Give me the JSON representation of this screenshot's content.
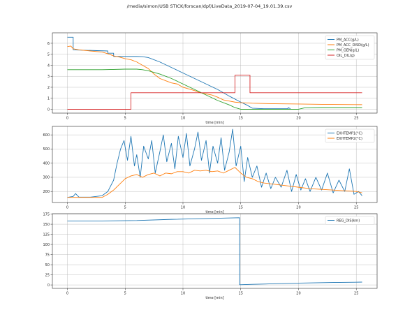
{
  "figure_title": "/media/simon/USB STICK/forscan/dpf/LiveData_2019-07-04_19.01.39.csv",
  "chart_data": [
    {
      "type": "line",
      "title": "",
      "xlabel": "time [min]",
      "ylabel": "",
      "xlim": [
        -1.3,
        26.8
      ],
      "ylim": [
        -0.35,
        6.95
      ],
      "xticks": [
        0,
        5,
        10,
        15,
        20,
        25
      ],
      "yticks": [
        0,
        1,
        2,
        3,
        4,
        5,
        6
      ],
      "grid": true,
      "legend_position": "top-right",
      "series": [
        {
          "name": "PM_ACC(g/L)",
          "color": "#1f77b4",
          "points": [
            [
              0,
              6.55
            ],
            [
              0.5,
              6.55
            ],
            [
              0.5,
              5.4
            ],
            [
              3.5,
              5.3
            ],
            [
              3.5,
              5.1
            ],
            [
              4,
              5.1
            ],
            [
              4,
              4.8
            ],
            [
              6,
              4.8
            ],
            [
              6.5,
              4.78
            ],
            [
              7,
              4.7
            ],
            [
              8,
              4.3
            ],
            [
              9,
              3.8
            ],
            [
              10,
              3.3
            ],
            [
              11,
              2.8
            ],
            [
              12,
              2.3
            ],
            [
              13,
              1.8
            ],
            [
              14,
              1.2
            ],
            [
              15,
              0.65
            ],
            [
              15.5,
              0.4
            ],
            [
              16,
              0.1
            ],
            [
              17,
              0.05
            ],
            [
              19.1,
              0.05
            ],
            [
              19.1,
              0.15
            ],
            [
              19.3,
              0.05
            ]
          ]
        },
        {
          "name": "PM_ACC_DISD(g/L)",
          "color": "#ff7f0e",
          "points": [
            [
              0,
              5.7
            ],
            [
              0.3,
              5.75
            ],
            [
              0.5,
              5.5
            ],
            [
              1,
              5.4
            ],
            [
              2,
              5.3
            ],
            [
              3,
              5.2
            ],
            [
              3.5,
              5.05
            ],
            [
              4,
              4.85
            ],
            [
              4.5,
              4.75
            ],
            [
              5,
              4.6
            ],
            [
              5.5,
              4.5
            ],
            [
              6,
              4.3
            ],
            [
              6.5,
              4.0
            ],
            [
              7,
              3.7
            ],
            [
              7.5,
              3.2
            ],
            [
              8,
              2.8
            ],
            [
              8.5,
              2.6
            ],
            [
              9,
              2.4
            ],
            [
              9.5,
              2.3
            ],
            [
              10,
              2.0
            ],
            [
              10.5,
              1.85
            ],
            [
              11,
              1.7
            ],
            [
              11.5,
              1.5
            ],
            [
              12,
              1.4
            ],
            [
              12.5,
              1.3
            ],
            [
              13,
              1.1
            ],
            [
              13.5,
              0.85
            ],
            [
              14,
              0.75
            ],
            [
              14.5,
              0.65
            ],
            [
              15,
              0.6
            ],
            [
              16,
              0.55
            ],
            [
              18,
              0.5
            ],
            [
              20,
              0.48
            ],
            [
              22,
              0.45
            ],
            [
              24,
              0.43
            ],
            [
              25.5,
              0.42
            ]
          ]
        },
        {
          "name": "PM_GEN(g/L)",
          "color": "#2ca02c",
          "points": [
            [
              0,
              3.6
            ],
            [
              2,
              3.6
            ],
            [
              3,
              3.6
            ],
            [
              4,
              3.62
            ],
            [
              5,
              3.65
            ],
            [
              6,
              3.65
            ],
            [
              6.5,
              3.6
            ],
            [
              7,
              3.5
            ],
            [
              8,
              3.2
            ],
            [
              9,
              2.8
            ],
            [
              10,
              2.3
            ],
            [
              11,
              1.8
            ],
            [
              12,
              1.3
            ],
            [
              13,
              0.8
            ],
            [
              14,
              0.4
            ],
            [
              14.5,
              0.15
            ],
            [
              15,
              0.0
            ],
            [
              17,
              0.0
            ],
            [
              20,
              0.0
            ],
            [
              20.5,
              0.12
            ],
            [
              22,
              0.15
            ],
            [
              25.5,
              0.15
            ]
          ]
        },
        {
          "name": "OIL_DIL(g)",
          "color": "#d62728",
          "points": [
            [
              0,
              0.0
            ],
            [
              5.5,
              0.0
            ],
            [
              5.5,
              1.5
            ],
            [
              14.5,
              1.5
            ],
            [
              14.5,
              3.1
            ],
            [
              15.8,
              3.1
            ],
            [
              15.8,
              1.5
            ],
            [
              25.5,
              1.5
            ]
          ]
        }
      ]
    },
    {
      "type": "line",
      "title": "",
      "xlabel": "time [min]",
      "ylabel": "",
      "xlim": [
        -1.3,
        26.8
      ],
      "ylim": [
        122,
        660
      ],
      "xticks": [
        0,
        5,
        10,
        15,
        20,
        25
      ],
      "yticks": [
        200,
        300,
        400,
        500,
        600
      ],
      "grid": true,
      "legend_position": "top-right",
      "series": [
        {
          "name": "EXHTEMP1(°C)",
          "color": "#1f77b4",
          "points": [
            [
              0,
              158
            ],
            [
              0.5,
              165
            ],
            [
              0.7,
              185
            ],
            [
              1,
              160
            ],
            [
              2,
              160
            ],
            [
              3,
              170
            ],
            [
              3.5,
              200
            ],
            [
              4,
              280
            ],
            [
              4.3,
              400
            ],
            [
              4.6,
              500
            ],
            [
              4.9,
              560
            ],
            [
              5.2,
              420
            ],
            [
              5.5,
              590
            ],
            [
              5.8,
              380
            ],
            [
              6,
              460
            ],
            [
              6.3,
              300
            ],
            [
              6.6,
              520
            ],
            [
              7,
              430
            ],
            [
              7.3,
              560
            ],
            [
              7.6,
              330
            ],
            [
              8,
              480
            ],
            [
              8.3,
              600
            ],
            [
              8.6,
              410
            ],
            [
              9,
              540
            ],
            [
              9.3,
              360
            ],
            [
              9.6,
              590
            ],
            [
              10,
              440
            ],
            [
              10.3,
              610
            ],
            [
              10.6,
              380
            ],
            [
              11,
              500
            ],
            [
              11.3,
              620
            ],
            [
              11.6,
              420
            ],
            [
              12,
              560
            ],
            [
              12.3,
              330
            ],
            [
              12.6,
              520
            ],
            [
              13,
              400
            ],
            [
              13.3,
              580
            ],
            [
              13.6,
              350
            ],
            [
              14,
              480
            ],
            [
              14.3,
              640
            ],
            [
              14.6,
              380
            ],
            [
              15,
              520
            ],
            [
              15.3,
              270
            ],
            [
              15.6,
              440
            ],
            [
              16,
              300
            ],
            [
              16.4,
              380
            ],
            [
              16.8,
              230
            ],
            [
              17.2,
              330
            ],
            [
              17.6,
              220
            ],
            [
              18,
              300
            ],
            [
              18.5,
              230
            ],
            [
              19,
              350
            ],
            [
              19.4,
              200
            ],
            [
              19.8,
              320
            ],
            [
              20.2,
              210
            ],
            [
              20.6,
              290
            ],
            [
              21,
              200
            ],
            [
              21.5,
              300
            ],
            [
              22,
              210
            ],
            [
              22.5,
              330
            ],
            [
              23,
              190
            ],
            [
              23.5,
              280
            ],
            [
              24,
              200
            ],
            [
              24.4,
              360
            ],
            [
              24.8,
              180
            ],
            [
              25.2,
              200
            ],
            [
              25.5,
              170
            ]
          ]
        },
        {
          "name": "EXHTEMP2(°C)",
          "color": "#ff7f0e",
          "points": [
            [
              0,
              158
            ],
            [
              1,
              158
            ],
            [
              2,
              158
            ],
            [
              3,
              158
            ],
            [
              3.5,
              180
            ],
            [
              4,
              210
            ],
            [
              4.5,
              250
            ],
            [
              5,
              290
            ],
            [
              5.5,
              310
            ],
            [
              6,
              320
            ],
            [
              6.5,
              300
            ],
            [
              7,
              320
            ],
            [
              7.5,
              330
            ],
            [
              8,
              310
            ],
            [
              8.5,
              330
            ],
            [
              9,
              325
            ],
            [
              9.5,
              340
            ],
            [
              10,
              340
            ],
            [
              10.5,
              330
            ],
            [
              11,
              350
            ],
            [
              11.5,
              345
            ],
            [
              12,
              350
            ],
            [
              12.5,
              340
            ],
            [
              13,
              345
            ],
            [
              13.5,
              330
            ],
            [
              14,
              350
            ],
            [
              14.5,
              370
            ],
            [
              15,
              330
            ],
            [
              15.5,
              300
            ],
            [
              16,
              290
            ],
            [
              16.5,
              270
            ],
            [
              17,
              260
            ],
            [
              18,
              250
            ],
            [
              19,
              240
            ],
            [
              20,
              230
            ],
            [
              21,
              220
            ],
            [
              22,
              215
            ],
            [
              23,
              210
            ],
            [
              24,
              205
            ],
            [
              25,
              200
            ],
            [
              25.5,
              190
            ]
          ]
        }
      ]
    },
    {
      "type": "line",
      "title": "",
      "xlabel": "time [min]",
      "ylabel": "",
      "xlim": [
        -1.3,
        26.8
      ],
      "ylim": [
        -8.5,
        176
      ],
      "xticks": [
        0,
        5,
        10,
        15,
        20,
        25
      ],
      "yticks": [
        0,
        25,
        50,
        75,
        100,
        125,
        150,
        175
      ],
      "grid": true,
      "legend_position": "top-right",
      "series": [
        {
          "name": "REG_DIS(km)",
          "color": "#1f77b4",
          "points": [
            [
              0,
              158
            ],
            [
              3,
              158
            ],
            [
              6,
              159
            ],
            [
              9,
              162
            ],
            [
              12,
              164
            ],
            [
              14.9,
              166
            ],
            [
              14.9,
              0.5
            ],
            [
              16,
              1.5
            ],
            [
              18,
              3
            ],
            [
              20,
              4.5
            ],
            [
              23,
              6
            ],
            [
              25.5,
              7
            ]
          ]
        }
      ]
    }
  ]
}
